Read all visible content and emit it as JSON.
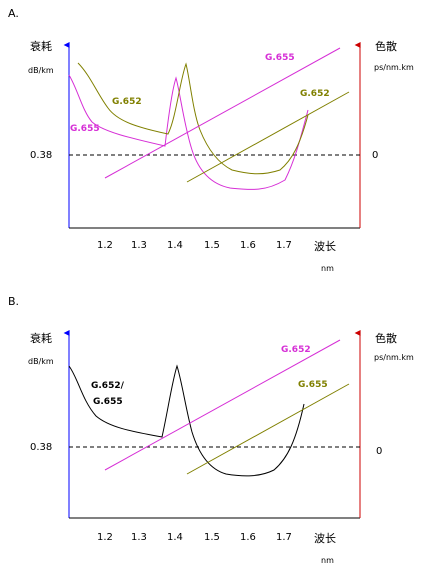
{
  "colors": {
    "axis_left": "#0000ff",
    "axis_right": "#cc0000",
    "g655": "#d62fd6",
    "g652": "#808000",
    "black": "#000000",
    "dashed": "#000000"
  },
  "panel_a": {
    "label": "A.",
    "left_axis_title": "衰耗",
    "left_axis_unit": "dB/km",
    "right_axis_title": "色散",
    "right_axis_unit": "ps/nm.km",
    "ref_value": "0.38",
    "right_zero": "0",
    "x_ticks": [
      "1.2",
      "1.3",
      "1.4",
      "1.5",
      "1.6",
      "1.7"
    ],
    "x_title": "波长",
    "x_unit": "nm",
    "labels": {
      "g655_attenuation": "G.655",
      "g652_attenuation": "G.652",
      "g655_dispersion": "G.655",
      "g652_dispersion": "G.652"
    }
  },
  "panel_b": {
    "label": "B.",
    "left_axis_title": "衰耗",
    "left_axis_unit": "dB/km",
    "right_axis_title": "色散",
    "right_axis_unit": "ps/nm.km",
    "ref_value": "0.38",
    "right_zero": "0",
    "x_ticks": [
      "1.2",
      "1.3",
      "1.4",
      "1.5",
      "1.6",
      "1.7"
    ],
    "x_title": "波长",
    "x_unit": "nm",
    "labels": {
      "combined_attenuation_line1": "G.652/",
      "combined_attenuation_line2": "G.655",
      "g652_dispersion": "G.652",
      "g655_dispersion": "G.655"
    }
  }
}
